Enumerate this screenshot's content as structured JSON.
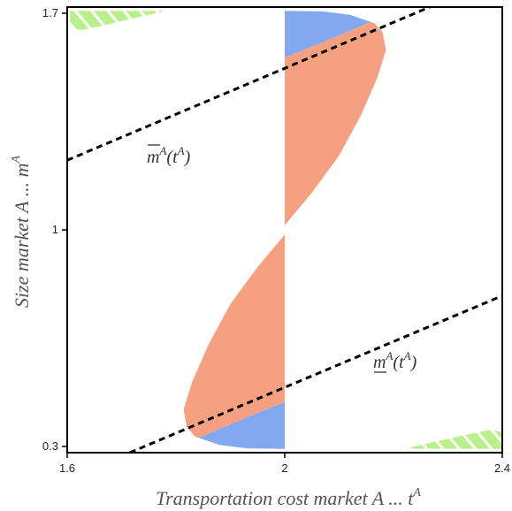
{
  "chart_data": {
    "type": "area",
    "title": "",
    "xlabel": "Transportation cost market A  ...  t",
    "xlabel_sup": "A",
    "ylabel": "Size market A  ...  m",
    "ylabel_sup": "A",
    "xlim": [
      1.6,
      2.4
    ],
    "ylim": [
      0.28,
      1.72
    ],
    "x_ticks": [
      {
        "value": 1.6,
        "label": "1.6"
      },
      {
        "value": 2.0,
        "label": "2"
      },
      {
        "value": 2.4,
        "label": "2.4"
      }
    ],
    "y_ticks": [
      {
        "value": 0.3,
        "label": "0.3"
      },
      {
        "value": 1.0,
        "label": "1"
      },
      {
        "value": 1.7,
        "label": "1.7"
      }
    ],
    "grid": false,
    "legend": "none",
    "colors": {
      "salmon": "#f4a081",
      "blue": "#82a8f0",
      "green": "#b9f08c",
      "hatch": "#ffffff",
      "line": "#000000",
      "frame": "#000000"
    },
    "upper_line": {
      "label_main": "m",
      "label_arg": "t",
      "label_sup": "A",
      "bar": "over",
      "points": [
        [
          1.6,
          1.225
        ],
        [
          2.3,
          1.745
        ]
      ]
    },
    "lower_line": {
      "label_main": "m",
      "label_arg": "t",
      "label_sup": "A",
      "bar": "under",
      "points": [
        [
          1.715,
          0.28
        ],
        [
          2.4,
          0.787
        ]
      ]
    },
    "regions": {
      "salmon": {
        "upper": [
          [
            2.0,
            1.015
          ],
          [
            2.05,
            1.12
          ],
          [
            2.1,
            1.24
          ],
          [
            2.14,
            1.37
          ],
          [
            2.17,
            1.49
          ],
          [
            2.186,
            1.58
          ],
          [
            2.18,
            1.638
          ],
          [
            2.165,
            1.668
          ],
          [
            2.158,
            1.672
          ],
          [
            2.107,
            1.634
          ],
          [
            2.04,
            1.585
          ],
          [
            2.0,
            1.557
          ]
        ],
        "lower": [
          [
            2.0,
            0.985
          ],
          [
            1.95,
            0.88
          ],
          [
            1.9,
            0.76
          ],
          [
            1.86,
            0.63
          ],
          [
            1.83,
            0.51
          ],
          [
            1.814,
            0.42
          ],
          [
            1.82,
            0.362
          ],
          [
            1.835,
            0.332
          ],
          [
            1.842,
            0.328
          ],
          [
            1.893,
            0.366
          ],
          [
            1.96,
            0.415
          ],
          [
            2.0,
            0.443
          ]
        ]
      },
      "blue": {
        "upper": [
          [
            2.0,
            1.557
          ],
          [
            2.04,
            1.585
          ],
          [
            2.107,
            1.634
          ],
          [
            2.158,
            1.672
          ],
          [
            2.12,
            1.695
          ],
          [
            2.07,
            1.706
          ],
          [
            2.0,
            1.708
          ]
        ],
        "lower": [
          [
            2.0,
            0.443
          ],
          [
            1.96,
            0.415
          ],
          [
            1.893,
            0.366
          ],
          [
            1.842,
            0.328
          ],
          [
            1.88,
            0.305
          ],
          [
            1.93,
            0.294
          ],
          [
            2.0,
            0.292
          ]
        ]
      },
      "green_hatched": {
        "top_left": [
          [
            1.605,
            1.708
          ],
          [
            1.605,
            1.655
          ],
          [
            1.625,
            1.645
          ],
          [
            1.675,
            1.664
          ],
          [
            1.72,
            1.683
          ],
          [
            1.775,
            1.705
          ],
          [
            1.775,
            1.708
          ]
        ],
        "bottom_right": [
          [
            2.4,
            0.292
          ],
          [
            2.4,
            0.345
          ],
          [
            2.38,
            0.355
          ],
          [
            2.33,
            0.336
          ],
          [
            2.28,
            0.317
          ],
          [
            2.225,
            0.295
          ],
          [
            2.225,
            0.292
          ]
        ]
      }
    }
  }
}
